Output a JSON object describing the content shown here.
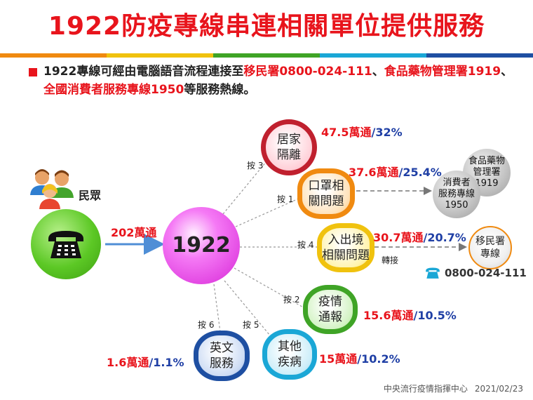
{
  "title": "1922防疫專線串連相關單位提供服務",
  "intro": {
    "part1": "1922專線可經由電腦語音流程連接至",
    "imm": "移民署0800-024-111",
    "sep1": "、",
    "fda": "食品藥物管理署1919",
    "sep2": "、",
    "cons": "全國消費者服務專線1950",
    "part2": "等服務熱線。"
  },
  "public_label": "民眾",
  "calls_total": "202萬通",
  "hub": "1922",
  "nodes": {
    "home": {
      "l1": "居家",
      "l2": "隔離",
      "press": "按 3",
      "value": "47.5萬通",
      "pct": "32%"
    },
    "mask": {
      "l1": "口罩相",
      "l2": "關問題",
      "press": "按 1",
      "value": "37.6萬通",
      "pct": "25.4%"
    },
    "border": {
      "l1": "入出境",
      "l2": "相關問題",
      "press": "按 4",
      "value": "30.7萬通",
      "pct": "20.7%"
    },
    "report": {
      "l1": "疫情",
      "l2": "通報",
      "press": "按 2",
      "value": "15.6萬通",
      "pct": "10.5%"
    },
    "other": {
      "l1": "其他",
      "l2": "疾病",
      "press": "按 5",
      "value": "15萬通",
      "pct": "10.2%"
    },
    "english": {
      "l1": "英文",
      "l2": "服務",
      "press": "按 6",
      "value": "1.6萬通",
      "pct": "1.1%"
    }
  },
  "transfer_label": "轉接",
  "fda": {
    "l1": "食品藥物",
    "l2": "管理署",
    "l3": "1919"
  },
  "consumer": {
    "l1": "消費者",
    "l2": "服務專線",
    "l3": "1950"
  },
  "immigration": {
    "l1": "移民署",
    "l2": "專線",
    "phone": "0800-024-111"
  },
  "slash": "/",
  "footer": {
    "org": "中央流行疫情指揮中心",
    "date": "2021/02/23"
  },
  "colors": {
    "title": "#e8141c",
    "value": "#e8141c",
    "percent": "#1f3fa5"
  },
  "stripe_colors": [
    "#f08a10",
    "#f0c20e",
    "#3fa426",
    "#1aa7d6",
    "#1e4fa2"
  ],
  "icons": {
    "people": "people-icon",
    "phone": "telephone-icon"
  }
}
